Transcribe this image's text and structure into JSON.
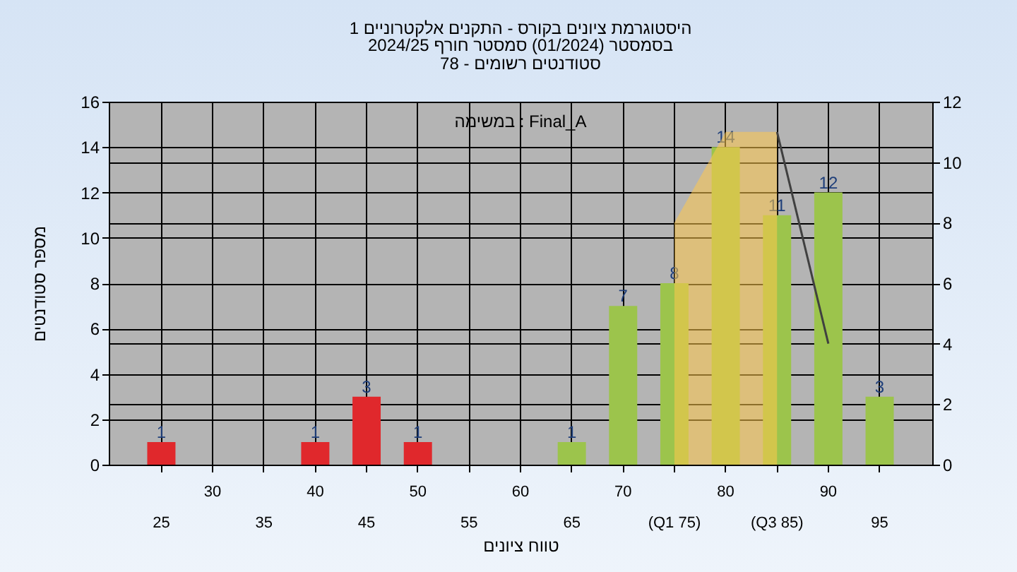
{
  "chart_data": {
    "type": "bar",
    "title": "היסטוגרמת ציונים בקורס - התקנים אלקטרוניים 1",
    "subtitle": "בסמסטר  (01/2024)  סמסטר חורף 2024/25\nסטודנטים רשומים - 78",
    "xlabel": "טווח ציונים",
    "ylabel": "מספר סטודנטים",
    "annotations": [
      "במשימה : Final_A"
    ],
    "categories": [
      "25",
      "30",
      "35",
      "40",
      "45",
      "50",
      "55",
      "60",
      "65",
      "70",
      "(Q1 75)",
      "80",
      "(Q3 85)",
      "90",
      "95"
    ],
    "series": [
      {
        "values": [
          1,
          0,
          0,
          1,
          3,
          1,
          0,
          0,
          1,
          7,
          8,
          14,
          11,
          12,
          3
        ],
        "colors": [
          "#e0282c",
          "#e0282c",
          "#e0282c",
          "#e0282c",
          "#e0282c",
          "#e0282c",
          "#9cc44c",
          "#9cc44c",
          "#9cc44c",
          "#9cc44c",
          "#9cc44c",
          "#9cc44c",
          "#9cc44c",
          "#9cc44c",
          "#9cc44c"
        ],
        "value_labels": [
          "1",
          null,
          null,
          "1",
          "3",
          "1",
          null,
          null,
          "1",
          "7",
          "8",
          "14",
          "11",
          "12",
          "3"
        ]
      },
      {
        "type": "area",
        "axis": "y2",
        "color": "#ffc94d",
        "values": [
          null,
          null,
          null,
          null,
          null,
          null,
          null,
          null,
          null,
          null,
          8,
          11,
          11,
          null,
          null
        ]
      },
      {
        "type": "line",
        "axis": "y2",
        "color": "#404040",
        "values": [
          null,
          null,
          null,
          null,
          null,
          null,
          null,
          null,
          null,
          null,
          null,
          null,
          11,
          4,
          null
        ]
      }
    ],
    "ylim": [
      0,
      16
    ],
    "yticks": [
      0,
      2,
      4,
      6,
      8,
      10,
      12,
      14,
      16
    ],
    "y2lim": [
      0,
      12
    ],
    "y2ticks": [
      0,
      2,
      4,
      6,
      8,
      10,
      12
    ],
    "grid": true
  }
}
